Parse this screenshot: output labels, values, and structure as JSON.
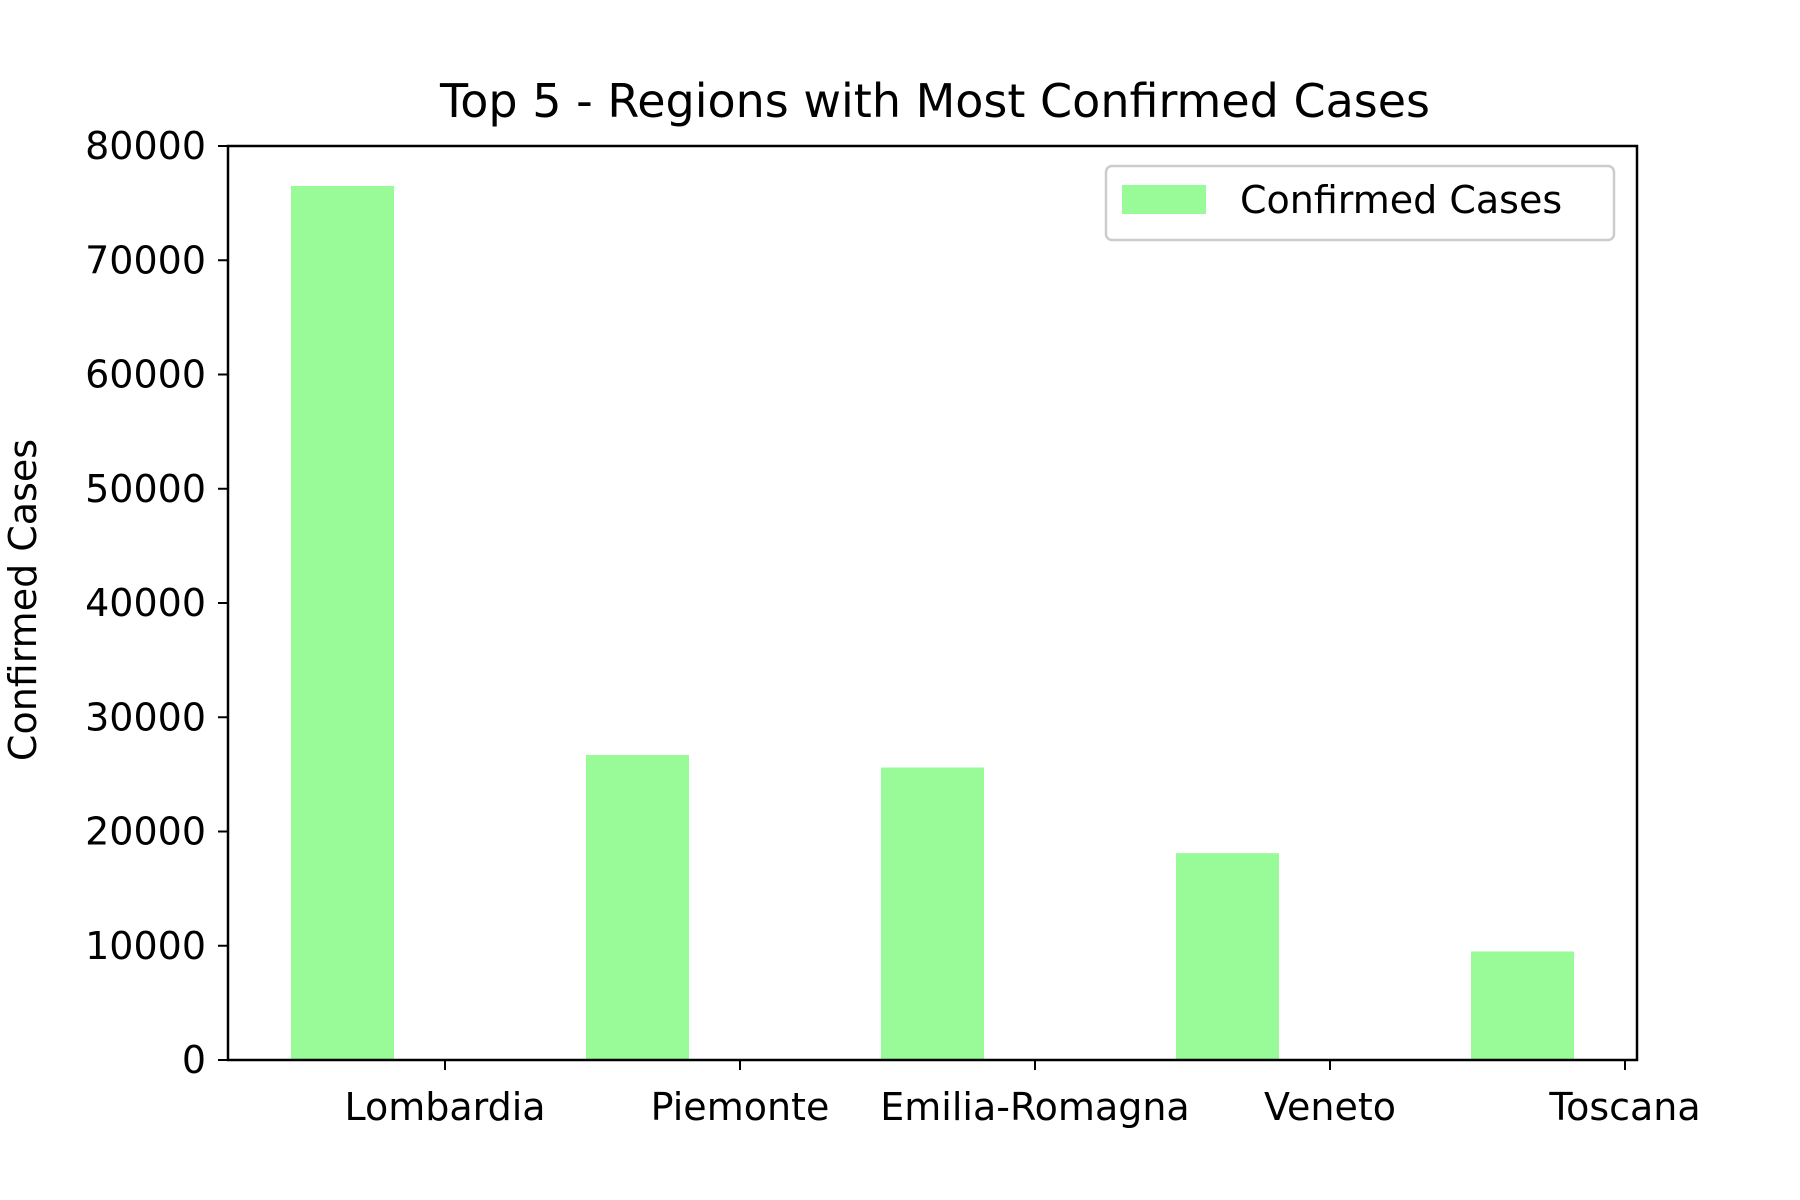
{
  "chart_data": {
    "type": "bar",
    "title": "Top 5 - Regions with Most Confirmed Cases",
    "xlabel": "",
    "ylabel": "Confirmed Cases",
    "categories": [
      "Lombardia",
      "Piemonte",
      "Emilia-Romagna",
      "Veneto",
      "Toscana"
    ],
    "series": [
      {
        "name": "Confirmed Cases",
        "values": [
          76500,
          26700,
          25600,
          18100,
          9500
        ]
      }
    ],
    "ylim": [
      0,
      80000
    ],
    "yticks": [
      0,
      10000,
      20000,
      30000,
      40000,
      50000,
      60000,
      70000,
      80000
    ],
    "ytick_labels": [
      "0",
      "10000",
      "20000",
      "30000",
      "40000",
      "50000",
      "60000",
      "70000",
      "80000"
    ],
    "grid": false,
    "legend_position": "top-right",
    "bar_color": "#98fb98"
  }
}
